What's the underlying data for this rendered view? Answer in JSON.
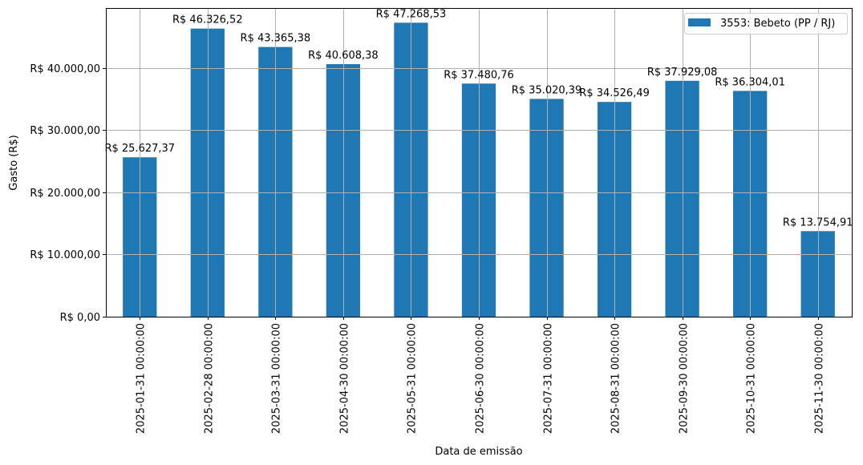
{
  "chart_data": {
    "type": "bar",
    "title": "",
    "xlabel": "Data de emissão",
    "ylabel": "Gasto (R$)",
    "ylim": [
      0,
      49632
    ],
    "grid": true,
    "legend_position": "upper right",
    "categories": [
      "2025-01-31 00:00:00",
      "2025-02-28 00:00:00",
      "2025-03-31 00:00:00",
      "2025-04-30 00:00:00",
      "2025-05-31 00:00:00",
      "2025-06-30 00:00:00",
      "2025-07-31 00:00:00",
      "2025-08-31 00:00:00",
      "2025-09-30 00:00:00",
      "2025-10-31 00:00:00",
      "2025-11-30 00:00:00"
    ],
    "series": [
      {
        "name": "3553: Bebeto (PP / RJ)",
        "color": "#1f77b4",
        "values": [
          25627.37,
          46326.52,
          43365.38,
          40608.38,
          47268.53,
          37480.76,
          35020.39,
          34526.49,
          37929.08,
          36304.01,
          13754.91
        ],
        "labels": [
          "R$ 25.627,37",
          "R$ 46.326,52",
          "R$ 43.365,38",
          "R$ 40.608,38",
          "R$ 47.268,53",
          "R$ 37.480,76",
          "R$ 35.020,39",
          "R$ 34.526,49",
          "R$ 37.929,08",
          "R$ 36.304,01",
          "R$ 13.754,91"
        ]
      }
    ],
    "yticks": [
      0,
      10000,
      20000,
      30000,
      40000
    ],
    "ytick_labels": [
      "R$ 0,00",
      "R$ 10.000,00",
      "R$ 20.000,00",
      "R$ 30.000,00",
      "R$ 40.000,00"
    ]
  },
  "colors": {
    "bar": "#1f77b4",
    "grid": "#b0b0b0",
    "axis": "#000000"
  }
}
